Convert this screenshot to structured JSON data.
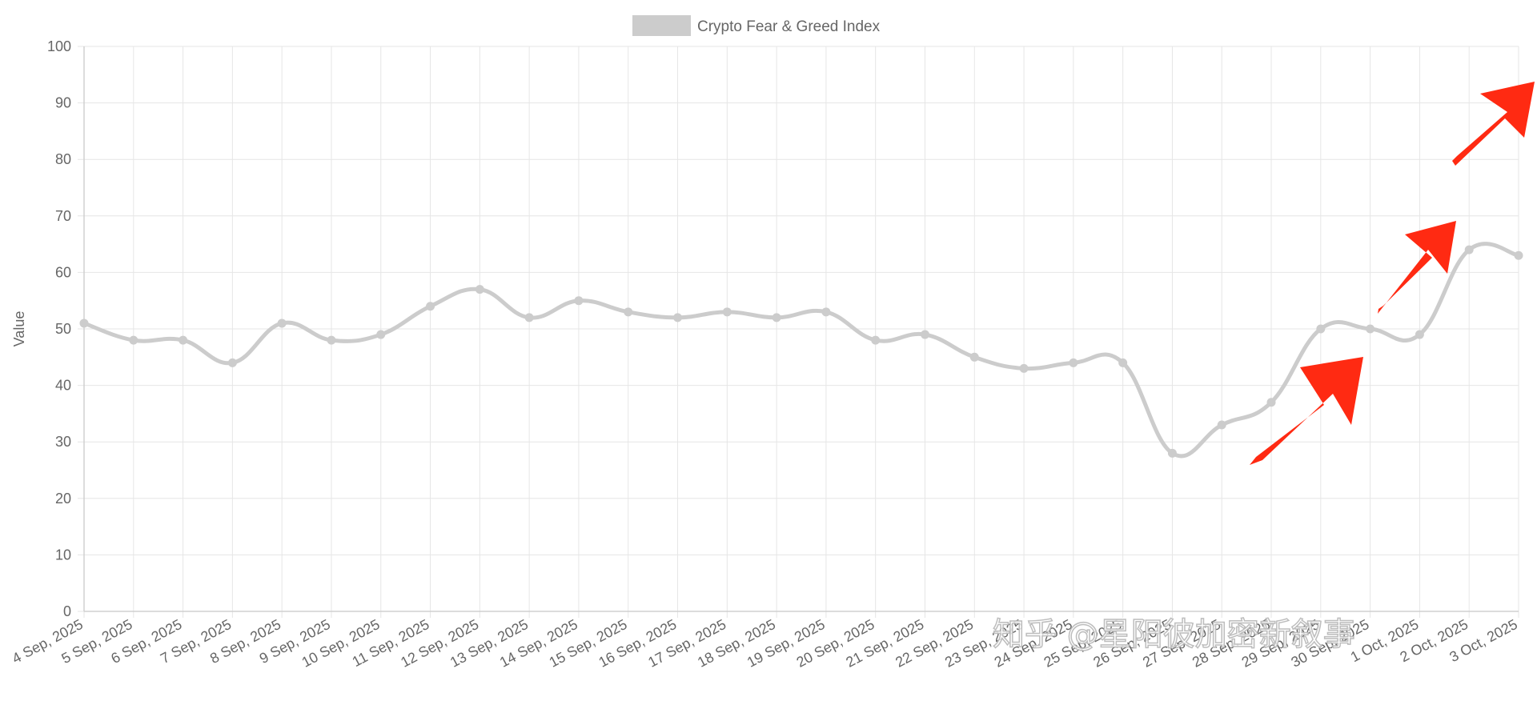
{
  "chart_data": {
    "type": "line",
    "title": "",
    "xlabel": "",
    "ylabel": "Value",
    "ylim": [
      0,
      100
    ],
    "yticks": [
      0,
      10,
      20,
      30,
      40,
      50,
      60,
      70,
      80,
      90,
      100
    ],
    "grid": true,
    "legend": {
      "position": "top-center",
      "entries": [
        "Crypto Fear & Greed Index"
      ]
    },
    "categories": [
      "4 Sep, 2025",
      "5 Sep, 2025",
      "6 Sep, 2025",
      "7 Sep, 2025",
      "8 Sep, 2025",
      "9 Sep, 2025",
      "10 Sep, 2025",
      "11 Sep, 2025",
      "12 Sep, 2025",
      "13 Sep, 2025",
      "14 Sep, 2025",
      "15 Sep, 2025",
      "16 Sep, 2025",
      "17 Sep, 2025",
      "18 Sep, 2025",
      "19 Sep, 2025",
      "20 Sep, 2025",
      "21 Sep, 2025",
      "22 Sep, 2025",
      "23 Sep, 2025",
      "24 Sep, 2025",
      "25 Sep, 2025",
      "26 Sep, 2025",
      "27 Sep, 2025",
      "28 Sep, 2025",
      "29 Sep, 2025",
      "30 Sep, 2025",
      "1 Oct, 2025",
      "2 Oct, 2025",
      "3 Oct, 2025"
    ],
    "series": [
      {
        "name": "Crypto Fear & Greed Index",
        "color": "#cccccc",
        "values": [
          51,
          48,
          48,
          44,
          51,
          48,
          49,
          54,
          57,
          52,
          55,
          53,
          52,
          53,
          52,
          53,
          48,
          49,
          45,
          43,
          44,
          44,
          28,
          33,
          37,
          50,
          50,
          49,
          64,
          63
        ]
      }
    ]
  },
  "overlay": {
    "watermark": "知乎 @星阳彼加密新叙事",
    "arrow_color": "#ff2a12"
  }
}
